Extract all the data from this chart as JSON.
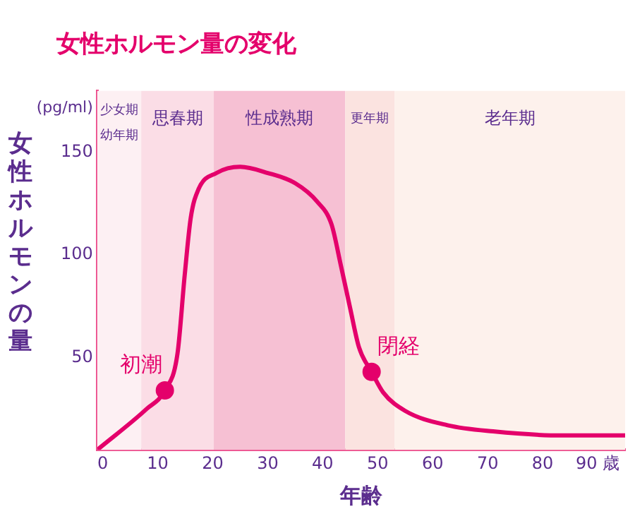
{
  "chart_data": {
    "type": "line",
    "title": "女性ホルモン量の変化",
    "xlabel": "年齢",
    "ylabel": "女性ホルモンの量",
    "xlim": [
      -1,
      95
    ],
    "xticks": [
      0,
      10,
      20,
      30,
      40,
      50,
      60,
      70,
      80,
      {
        "value": 90,
        "label": "90 歳"
      }
    ],
    "ylim": [
      5,
      180
    ],
    "yticks": [
      50,
      100,
      150
    ],
    "grid": false,
    "legend": false,
    "series": [
      {
        "color": "#e4006b",
        "marker": "none",
        "x": [
          -1,
          8,
          11.3,
          13.6,
          14.9,
          16,
          17.4,
          20.7,
          25,
          30,
          35,
          39,
          41.6,
          43.3,
          45,
          46.6,
          48.9,
          51,
          55,
          62.7,
          71,
          83.6,
          95
        ],
        "values": [
          5,
          25,
          34,
          52,
          90,
          118,
          132,
          140,
          143,
          140,
          135,
          126,
          115,
          95,
          74,
          55,
          43,
          33,
          24,
          17,
          14,
          12,
          12
        ]
      },
      {
        "type": "scatter",
        "color": "#e4006b",
        "marker": "circle",
        "x": [
          11.3,
          48.9
        ],
        "values": [
          34,
          43
        ]
      }
    ],
    "bands": [
      {
        "axis": "x",
        "from": -1,
        "to": 7,
        "label": "少女期幼年期",
        "color": "#fdf0f3"
      },
      {
        "axis": "x",
        "from": 7,
        "to": 20.2,
        "label": "思春期",
        "color": "#fbdde6"
      },
      {
        "axis": "x",
        "from": 20.2,
        "to": 44.1,
        "label": "性成熟期",
        "color": "#f6c0d3"
      },
      {
        "axis": "x",
        "from": 44.1,
        "to": 53.1,
        "label": "更年期",
        "color": "#fbe3e0"
      },
      {
        "axis": "x",
        "from": 53.1,
        "to": 95,
        "label": "老年期",
        "color": "#fdf1ec"
      }
    ],
    "annotations": [
      {
        "text": "初潮",
        "x": 11.3,
        "y": 34
      },
      {
        "text": "閉経",
        "x": 48.9,
        "y": 43
      },
      "(pg/ml)"
    ]
  }
}
